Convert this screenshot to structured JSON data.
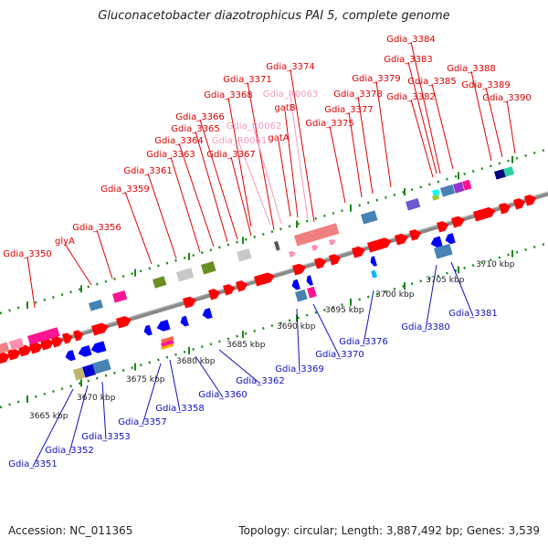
{
  "title": "Gluconacetobacter diazotrophicus PAI 5, complete genome",
  "footer": {
    "accession": "Accession: NC_011365",
    "summary": "Topology: circular; Length: 3,887,492 bp; Genes: 3,539"
  },
  "colors": {
    "forward_label": "#e00000",
    "rna_label": "#f09ac0",
    "reverse_label": "#1010c0",
    "backbone": "#8a8a8a",
    "tick": "#1a8a1a"
  },
  "scale_labels": [
    "3665 kbp",
    "3670 kbp",
    "3675 kbp",
    "3680 kbp",
    "3685 kbp",
    "3690 kbp",
    "3695 kbp",
    "3700 kbp",
    "3705 kbp",
    "3710 kbp"
  ],
  "forward_labels": [
    "Gdia_3350",
    "glyA",
    "Gdia_3356",
    "Gdia_3359",
    "Gdia_3361",
    "Gdia_3363",
    "Gdia_3364",
    "Gdia_3365",
    "Gdia_3366",
    "Gdia_3367",
    "Gdia_3368",
    "Gdia_3371",
    "Gdia_3374",
    "gatB",
    "gatA",
    "Gdia_3375",
    "Gdia_3377",
    "Gdia_3378",
    "Gdia_3379",
    "Gdia_3382",
    "Gdia_3383",
    "Gdia_3384",
    "Gdia_3385",
    "Gdia_3388",
    "Gdia_3389",
    "Gdia_3390"
  ],
  "rna_labels": [
    "Gdia_R0063",
    "Gdia_R0062",
    "Gdia_R0061"
  ],
  "reverse_labels": [
    "Gdia_3351",
    "Gdia_3352",
    "Gdia_3353",
    "Gdia_3357",
    "Gdia_3358",
    "Gdia_3360",
    "Gdia_3362",
    "Gdia_3369",
    "Gdia_3370",
    "Gdia_3376",
    "Gdia_3380",
    "Gdia_3381"
  ]
}
